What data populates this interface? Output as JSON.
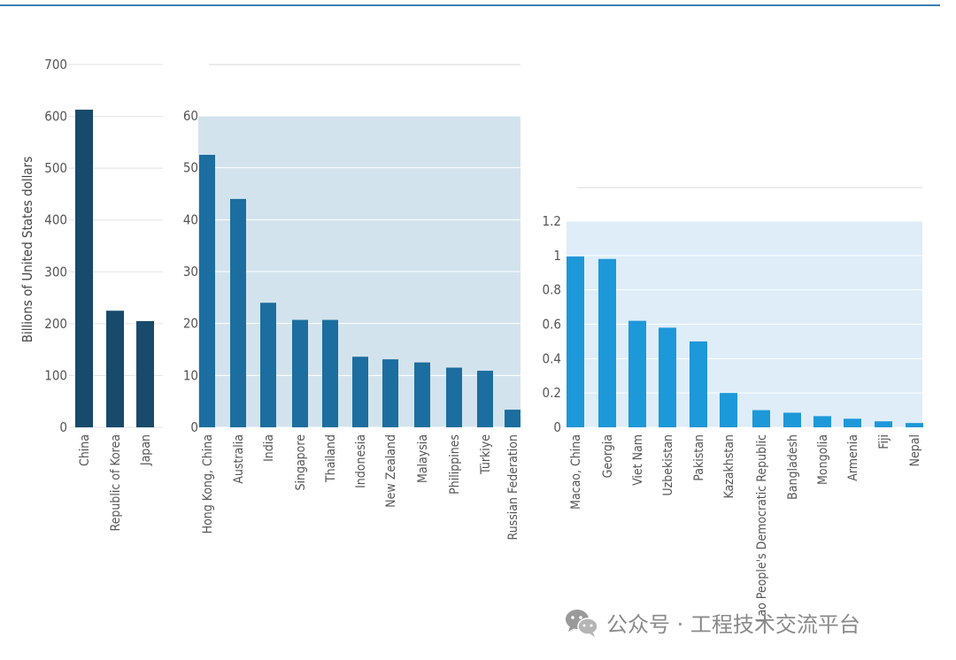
{
  "chart_data": [
    {
      "type": "bar",
      "panel": "large",
      "ylabel": "Billions of United States dollars",
      "ylim": [
        0,
        700
      ],
      "yticks": [
        0,
        100,
        200,
        300,
        400,
        500,
        600,
        700
      ],
      "categories": [
        "China",
        "Republic of Korea",
        "Japan"
      ],
      "values": [
        613,
        225,
        205
      ],
      "color": "#174a6b"
    },
    {
      "type": "bar",
      "panel": "medium",
      "ylim": [
        0,
        60
      ],
      "yticks": [
        0,
        10,
        20,
        30,
        40,
        50,
        60
      ],
      "categories": [
        "Hong Kong, China",
        "Australia",
        "India",
        "Singapore",
        "Thailand",
        "Indonesia",
        "New Zealand",
        "Malaysia",
        "Philippines",
        "Türkiye",
        "Russian Federation"
      ],
      "values": [
        52.5,
        44,
        24,
        20.7,
        20.7,
        13.6,
        13.1,
        12.5,
        11.5,
        10.9,
        3.4
      ],
      "color": "#1b6e9f"
    },
    {
      "type": "bar",
      "panel": "small",
      "ylim": [
        0,
        1.2
      ],
      "yticks": [
        0,
        0.2,
        0.4,
        0.6,
        0.8,
        1,
        1.2
      ],
      "categories": [
        "Macao, China",
        "Georgia",
        "Viet Nam",
        "Uzbekistan",
        "Pakistan",
        "Kazakhstan",
        "Lao People's Democratic Republic",
        "Bangladesh",
        "Mongolia",
        "Armenia",
        "Fiji",
        "Nepal"
      ],
      "values": [
        0.995,
        0.98,
        0.62,
        0.58,
        0.5,
        0.2,
        0.1,
        0.085,
        0.065,
        0.05,
        0.035,
        0.025
      ],
      "color": "#1d98d8"
    }
  ],
  "watermark": {
    "icon": "wechat-icon",
    "text": "公众号 · 工程技术交流平台"
  }
}
